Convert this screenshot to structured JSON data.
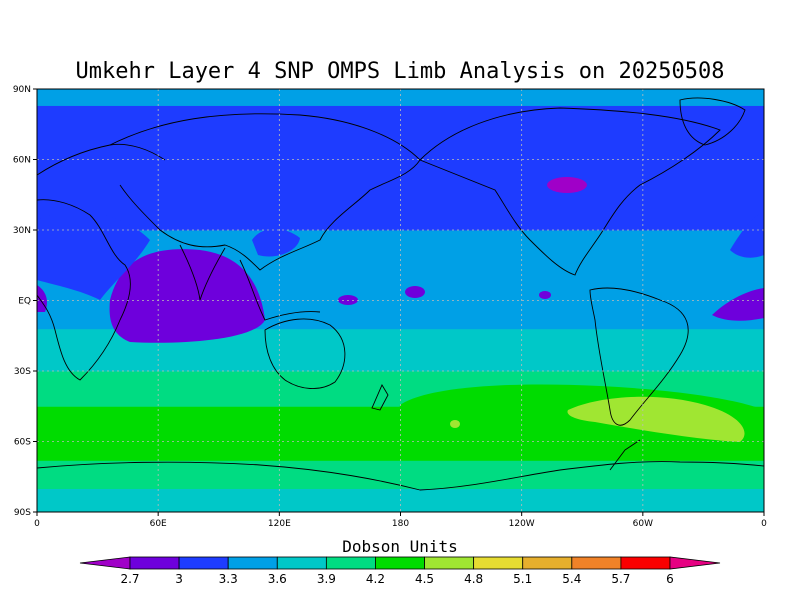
{
  "chart_data": {
    "type": "heatmap",
    "title": "Umkehr Layer 4 SNP OMPS Limb Analysis on 20250508",
    "x_ticks": [
      "0",
      "60E",
      "120E",
      "180",
      "120W",
      "60W",
      "0"
    ],
    "y_ticks": [
      "90N",
      "60N",
      "30N",
      "EQ",
      "30S",
      "60S",
      "90S"
    ],
    "x_range": [
      0,
      360
    ],
    "y_range": [
      -90,
      90
    ],
    "grid": true,
    "colorbar": {
      "label": "Dobson Units",
      "tick_labels": [
        "2.7",
        "3",
        "3.3",
        "3.6",
        "3.9",
        "4.2",
        "4.5",
        "4.8",
        "5.1",
        "5.4",
        "5.7",
        "6"
      ],
      "colors": [
        "#a000c8",
        "#6e00dc",
        "#1e3cff",
        "#00a0e6",
        "#00c8c8",
        "#00dc82",
        "#00dc00",
        "#a0e632",
        "#e6dc32",
        "#e6af2d",
        "#f08228",
        "#fa0000",
        "#e60082"
      ]
    },
    "bands": [
      {
        "lat": [
          -90,
          -80
        ],
        "level": "3.6"
      },
      {
        "lat": [
          -80,
          -68
        ],
        "level": "3.9"
      },
      {
        "lat": [
          -68,
          -45
        ],
        "level": "4.2"
      },
      {
        "lat": [
          -45,
          -30
        ],
        "level": "3.9"
      },
      {
        "lat": [
          -30,
          -12
        ],
        "level": "3.6"
      },
      {
        "lat": [
          -12,
          30
        ],
        "level": "3.3"
      },
      {
        "lat": [
          30,
          83
        ],
        "level": "3"
      },
      {
        "lat": [
          83,
          90
        ],
        "level": "3.3"
      }
    ]
  }
}
